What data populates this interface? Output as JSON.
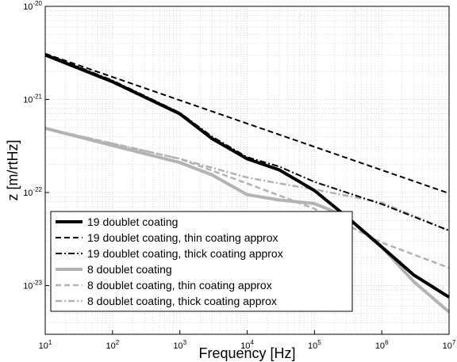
{
  "chart_data": {
    "type": "line",
    "xlabel": "Frequency [Hz]",
    "ylabel": "z [m/rtHz]",
    "x_scale": "log",
    "y_scale": "log",
    "xlim": [
      10,
      10000000
    ],
    "ylim": [
      3e-24,
      1e-20
    ],
    "grid": true,
    "legend_position": "bottom-left",
    "x_ticks": [
      {
        "base": "10",
        "exp": "1"
      },
      {
        "base": "10",
        "exp": "2"
      },
      {
        "base": "10",
        "exp": "3"
      },
      {
        "base": "10",
        "exp": "4"
      },
      {
        "base": "10",
        "exp": "5"
      },
      {
        "base": "10",
        "exp": "6"
      },
      {
        "base": "10",
        "exp": "7"
      }
    ],
    "y_ticks": [
      {
        "base": "10",
        "exp": "-20"
      },
      {
        "base": "10",
        "exp": "-21"
      },
      {
        "base": "10",
        "exp": "-22"
      },
      {
        "base": "10",
        "exp": "-23"
      }
    ],
    "series": [
      {
        "name": "19 doublet coating",
        "color": "#000000",
        "style": "solid",
        "width": 4,
        "points": [
          [
            10,
            3e-21
          ],
          [
            100,
            1.55e-21
          ],
          [
            1000,
            7e-22
          ],
          [
            3000,
            3.8e-22
          ],
          [
            10000,
            2.3e-22
          ],
          [
            30000,
            1.75e-22
          ],
          [
            100000,
            1.05e-22
          ],
          [
            300000,
            5.5e-23
          ],
          [
            1000000,
            2.6e-23
          ],
          [
            3000000,
            1.3e-23
          ],
          [
            10000000,
            7.5e-24
          ]
        ]
      },
      {
        "name": "19 doublet coating, thin coating approx",
        "color": "#000000",
        "style": "dashed",
        "width": 2,
        "points": [
          [
            10,
            3.1e-21
          ],
          [
            10000000,
            9.8e-23
          ]
        ]
      },
      {
        "name": "19 doublet coating, thick coating approx",
        "color": "#000000",
        "style": "dashdot",
        "width": 2,
        "points": [
          [
            10,
            3.1e-21
          ],
          [
            100,
            1.6e-21
          ],
          [
            1000,
            7.2e-22
          ],
          [
            3000,
            4e-22
          ],
          [
            10000,
            2.4e-22
          ],
          [
            30000,
            1.9e-22
          ],
          [
            100000,
            1.3e-22
          ],
          [
            1000000,
            7.5e-23
          ],
          [
            10000000,
            3.9e-23
          ]
        ]
      },
      {
        "name": "8 doublet coating",
        "color": "#b3b3b3",
        "style": "solid",
        "width": 4,
        "points": [
          [
            10,
            4.9e-22
          ],
          [
            100,
            3.2e-22
          ],
          [
            1000,
            2.1e-22
          ],
          [
            3000,
            1.55e-22
          ],
          [
            10000,
            9.5e-23
          ],
          [
            30000,
            8.3e-23
          ],
          [
            100000,
            7.6e-23
          ],
          [
            300000,
            5.5e-23
          ],
          [
            1000000,
            2.6e-23
          ],
          [
            3000000,
            1.1e-23
          ],
          [
            10000000,
            5.2e-24
          ]
        ]
      },
      {
        "name": "8 doublet coating,  thin coating approx",
        "color": "#b3b3b3",
        "style": "dashed",
        "width": 2.5,
        "points": [
          [
            10,
            4.9e-22
          ],
          [
            1000,
            2.3e-22
          ],
          [
            10000,
            1.25e-22
          ],
          [
            100000,
            6.7e-23
          ],
          [
            1000000,
            2.9e-23
          ],
          [
            10000000,
            1.55e-23
          ]
        ]
      },
      {
        "name": "8 doublet coating,  thick coating approx",
        "color": "#b3b3b3",
        "style": "dashdot",
        "width": 2.5,
        "points": [
          [
            10,
            4.9e-22
          ],
          [
            1000,
            2.3e-22
          ],
          [
            10000,
            1.45e-22
          ],
          [
            30000,
            1.25e-22
          ],
          [
            100000,
            1.08e-22
          ],
          [
            1000000,
            7.8e-23
          ],
          [
            10000000,
            3.9e-23
          ]
        ]
      }
    ]
  }
}
